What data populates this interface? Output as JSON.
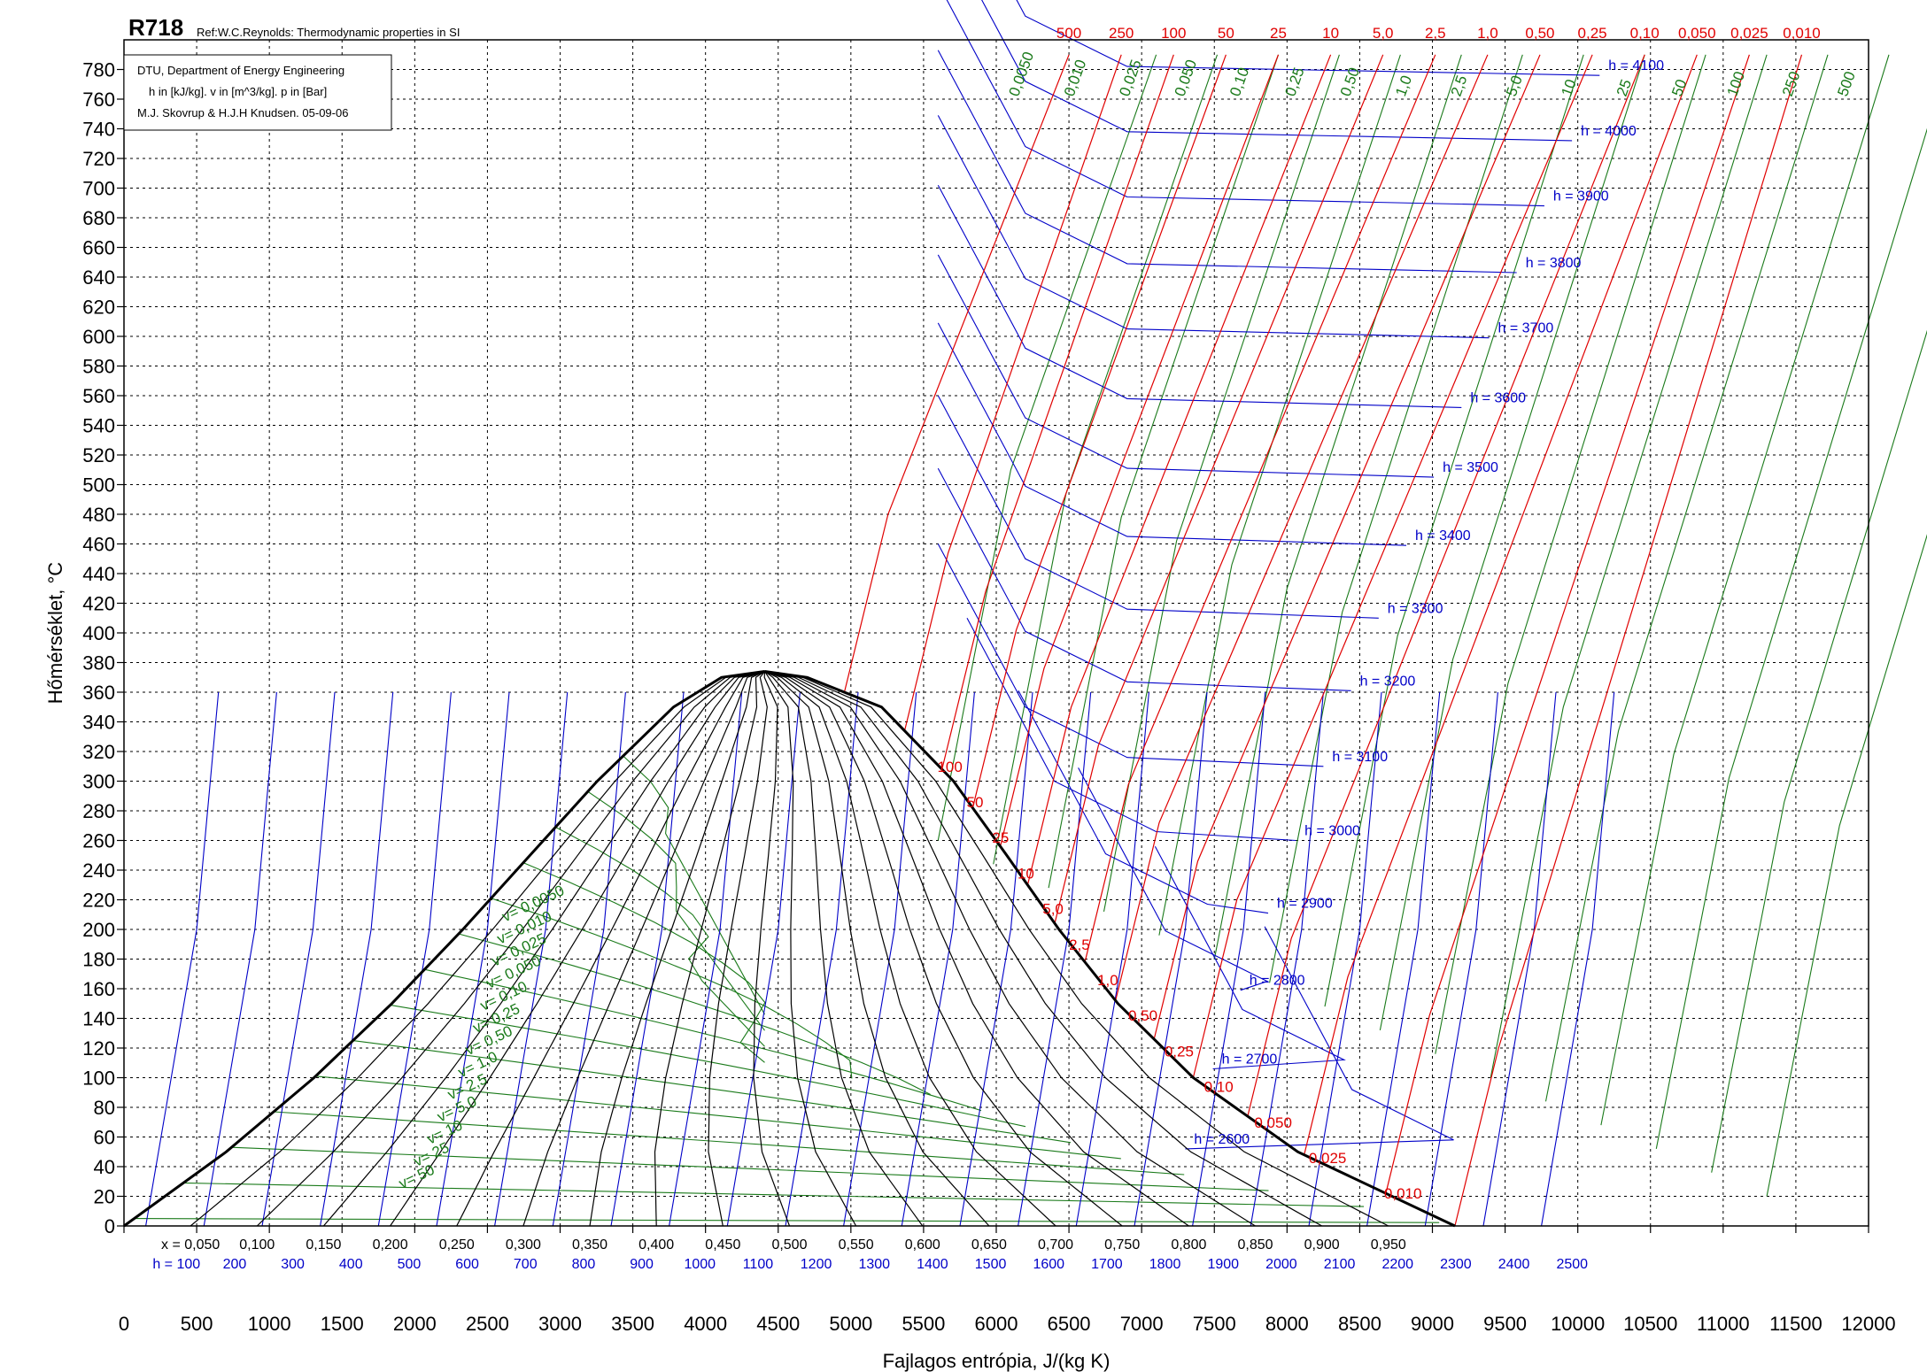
{
  "header": {
    "title": "R718",
    "reference": "Ref:W.C.Reynolds: Thermodynamic properties in SI"
  },
  "info_box": {
    "line1": "DTU, Department of Energy Engineering",
    "line2": "h in [kJ/kg]. v in [m^3/kg]. p in [Bar]",
    "line3": "M.J. Skovrup & H.J.H Knudsen. 05-09-06"
  },
  "colors": {
    "pressure": "#e00000",
    "enthalpy": "#0000c8",
    "volume": "#1a7a1a",
    "quality": "#000000",
    "grid": "#000000"
  },
  "chart_data": {
    "type": "line",
    "title": "R718",
    "xlabel": "Fajlagos entrópia, J/(kg K)",
    "ylabel": "Hőmérséklet, °C",
    "xlim": [
      0,
      12000
    ],
    "ylim": [
      0,
      800
    ],
    "grid": true,
    "x_ticks": [
      "0",
      "500",
      "1000",
      "1500",
      "2000",
      "2500",
      "3000",
      "3500",
      "4000",
      "4500",
      "5000",
      "5500",
      "6000",
      "6500",
      "7000",
      "7500",
      "8000",
      "8500",
      "9000",
      "9500",
      "10000",
      "10500",
      "11000",
      "11500",
      "12000"
    ],
    "y_ticks": [
      "0",
      "20",
      "40",
      "60",
      "80",
      "100",
      "120",
      "140",
      "160",
      "180",
      "200",
      "220",
      "240",
      "260",
      "280",
      "300",
      "320",
      "340",
      "360",
      "380",
      "400",
      "420",
      "440",
      "460",
      "480",
      "500",
      "520",
      "540",
      "560",
      "580",
      "600",
      "620",
      "640",
      "660",
      "680",
      "700",
      "720",
      "740",
      "760",
      "780"
    ],
    "saturation_dome": {
      "liquid": [
        [
          0,
          0
        ],
        [
          703,
          50
        ],
        [
          1307,
          100
        ],
        [
          1842,
          150
        ],
        [
          2331,
          200
        ],
        [
          2793,
          250
        ],
        [
          3255,
          300
        ],
        [
          3780,
          350
        ],
        [
          4110,
          370
        ],
        [
          4407,
          374
        ]
      ],
      "vapor": [
        [
          9155,
          0
        ],
        [
          8075,
          50
        ],
        [
          7355,
          100
        ],
        [
          6837,
          150
        ],
        [
          6431,
          200
        ],
        [
          6072,
          250
        ],
        [
          5706,
          300
        ],
        [
          5211,
          350
        ],
        [
          4700,
          370
        ],
        [
          4407,
          374
        ]
      ]
    },
    "quality_labels": [
      "x = 0,050",
      "0,100",
      "0,150",
      "0,200",
      "0,250",
      "0,300",
      "0,350",
      "0,400",
      "0,450",
      "0,500",
      "0,550",
      "0,600",
      "0,650",
      "0,700",
      "0,750",
      "0,800",
      "0,850",
      "0,900",
      "0,950"
    ],
    "enthalpy_bottom_labels": [
      "h = 100",
      "200",
      "300",
      "400",
      "500",
      "600",
      "700",
      "800",
      "900",
      "1000",
      "1100",
      "1200",
      "1300",
      "1400",
      "1500",
      "1600",
      "1700",
      "1800",
      "1900",
      "2000",
      "2100",
      "2200",
      "2300",
      "2400",
      "2500"
    ],
    "enthalpy_superheat": [
      {
        "label": "h = 2600",
        "T": 52
      },
      {
        "label": "h = 2700",
        "T": 106
      },
      {
        "label": "h = 2800",
        "T": 159
      },
      {
        "label": "h = 2900",
        "T": 211
      },
      {
        "label": "h = 3000",
        "T": 260
      },
      {
        "label": "h = 3100",
        "T": 310
      },
      {
        "label": "h = 3200",
        "T": 361
      },
      {
        "label": "h = 3300",
        "T": 410
      },
      {
        "label": "h = 3400",
        "T": 459
      },
      {
        "label": "h = 3500",
        "T": 505
      },
      {
        "label": "h = 3600",
        "T": 552
      },
      {
        "label": "h = 3700",
        "T": 599
      },
      {
        "label": "h = 3800",
        "T": 643
      },
      {
        "label": "h = 3900",
        "T": 688
      },
      {
        "label": "h = 4000",
        "T": 732
      },
      {
        "label": "h = 4100",
        "T": 776
      }
    ],
    "pressure_labels_top": [
      "500",
      "250",
      "100",
      "50",
      "25",
      "10",
      "5,0",
      "2,5",
      "1,0",
      "0,50",
      "0,25",
      "0,10",
      "0,050",
      "0,025",
      "0,010"
    ],
    "pressure_labels_dome": [
      "100",
      "50",
      "25",
      "10",
      "5,0",
      "2,5",
      "1,0",
      "0,50",
      "0,25",
      "0,10",
      "0,050",
      "0,025",
      "0,010"
    ],
    "volume_labels_top": [
      "0,0050",
      "0,010",
      "0,025",
      "0,050",
      "0,10",
      "0,25",
      "0,50",
      "1,0",
      "2,5",
      "5,0",
      "10",
      "25",
      "50",
      "100",
      "250",
      "500"
    ],
    "volume_labels_dome": [
      "v= 0,0050",
      "v= 0,010",
      "v= 0,025",
      "v= 0,050",
      "v= 0,10",
      "v= 0,25",
      "v= 0,50",
      "v= 1,0",
      "v= 2,5",
      "v= 5,0",
      "v= 10",
      "v= 25",
      "v= 50"
    ]
  }
}
